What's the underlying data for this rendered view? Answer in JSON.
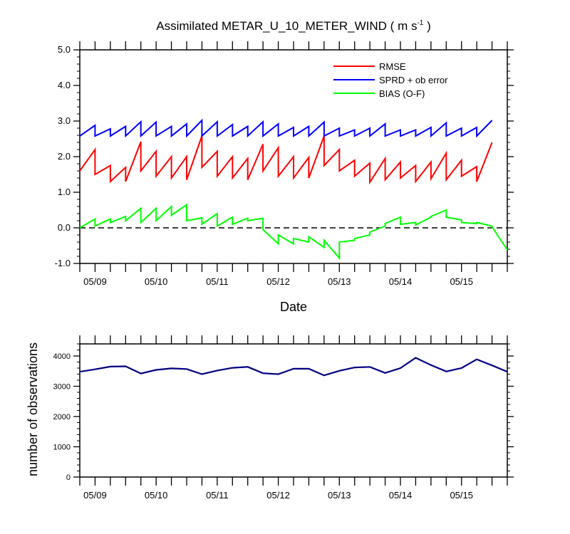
{
  "chart_data": [
    {
      "type": "line",
      "title": "Assimilated METAR_U_10_METER_WIND ( m s",
      "title_superscript": "-1",
      "title_close": " )",
      "xlabel": "Date",
      "ylabel": "",
      "ylim": [
        -1.0,
        5.0
      ],
      "yticks": [
        "-1.0",
        "0.0",
        "1.0",
        "2.0",
        "3.0",
        "4.0",
        "5.0"
      ],
      "yticks_values": [
        -1,
        0,
        1,
        2,
        3,
        4,
        5
      ],
      "xlim": [
        0,
        28
      ],
      "x_tick_labels": [
        "05/09",
        "05/10",
        "05/11",
        "05/12",
        "05/13",
        "05/14",
        "05/15"
      ],
      "x_tick_positions": [
        1,
        5,
        9,
        13,
        17,
        21,
        25
      ],
      "legend_position": "top-right",
      "zero_line": "dashed",
      "series": [
        {
          "name": "RMSE",
          "color": "#ff0000",
          "points": [
            [
              0,
              1.6
            ],
            [
              1,
              2.2
            ],
            [
              1,
              1.5
            ],
            [
              2,
              1.75
            ],
            [
              2,
              1.3
            ],
            [
              3,
              1.7
            ],
            [
              3,
              1.3
            ],
            [
              4,
              2.42
            ],
            [
              4,
              1.6
            ],
            [
              5,
              2.15
            ],
            [
              5,
              1.45
            ],
            [
              6,
              2.0
            ],
            [
              6,
              1.4
            ],
            [
              7,
              2.0
            ],
            [
              7,
              1.35
            ],
            [
              8,
              2.58
            ],
            [
              8,
              1.7
            ],
            [
              9,
              2.15
            ],
            [
              9,
              1.45
            ],
            [
              10,
              2.0
            ],
            [
              10,
              1.4
            ],
            [
              11,
              1.95
            ],
            [
              11,
              1.35
            ],
            [
              12,
              2.35
            ],
            [
              12,
              1.6
            ],
            [
              13,
              2.25
            ],
            [
              13,
              1.45
            ],
            [
              14,
              2.0
            ],
            [
              14,
              1.4
            ],
            [
              15,
              1.98
            ],
            [
              15,
              1.4
            ],
            [
              16,
              2.58
            ],
            [
              16,
              1.75
            ],
            [
              17,
              2.2
            ],
            [
              17,
              1.6
            ],
            [
              18,
              1.9
            ],
            [
              18,
              1.45
            ],
            [
              19,
              1.82
            ],
            [
              19,
              1.28
            ],
            [
              20,
              1.95
            ],
            [
              20,
              1.35
            ],
            [
              21,
              1.85
            ],
            [
              21,
              1.4
            ],
            [
              22,
              1.75
            ],
            [
              22,
              1.3
            ],
            [
              23,
              1.85
            ],
            [
              23,
              1.38
            ],
            [
              24,
              2.1
            ],
            [
              24,
              1.35
            ],
            [
              25,
              1.9
            ],
            [
              25,
              1.45
            ],
            [
              26,
              1.72
            ],
            [
              26,
              1.3
            ],
            [
              27,
              2.4
            ]
          ]
        },
        {
          "name": "SPRD + ob error",
          "color": "#0000ff",
          "points": [
            [
              0,
              2.58
            ],
            [
              1,
              2.88
            ],
            [
              1,
              2.58
            ],
            [
              2,
              2.78
            ],
            [
              2,
              2.58
            ],
            [
              3,
              2.85
            ],
            [
              3,
              2.58
            ],
            [
              4,
              2.98
            ],
            [
              4,
              2.58
            ],
            [
              5,
              2.97
            ],
            [
              5,
              2.58
            ],
            [
              6,
              2.85
            ],
            [
              6,
              2.58
            ],
            [
              7,
              2.92
            ],
            [
              7,
              2.58
            ],
            [
              8,
              3.02
            ],
            [
              8,
              2.58
            ],
            [
              9,
              2.98
            ],
            [
              9,
              2.58
            ],
            [
              10,
              2.9
            ],
            [
              10,
              2.58
            ],
            [
              11,
              2.85
            ],
            [
              11,
              2.58
            ],
            [
              12,
              2.98
            ],
            [
              12,
              2.58
            ],
            [
              13,
              2.92
            ],
            [
              13,
              2.58
            ],
            [
              14,
              2.82
            ],
            [
              14,
              2.58
            ],
            [
              15,
              2.85
            ],
            [
              15,
              2.58
            ],
            [
              16,
              2.97
            ],
            [
              16,
              2.58
            ],
            [
              17,
              2.8
            ],
            [
              17,
              2.58
            ],
            [
              18,
              2.75
            ],
            [
              18,
              2.58
            ],
            [
              19,
              2.8
            ],
            [
              19,
              2.58
            ],
            [
              20,
              2.92
            ],
            [
              20,
              2.58
            ],
            [
              21,
              2.75
            ],
            [
              21,
              2.58
            ],
            [
              22,
              2.75
            ],
            [
              22,
              2.58
            ],
            [
              23,
              2.82
            ],
            [
              23,
              2.58
            ],
            [
              24,
              2.95
            ],
            [
              24,
              2.58
            ],
            [
              25,
              2.8
            ],
            [
              25,
              2.58
            ],
            [
              26,
              2.82
            ],
            [
              26,
              2.58
            ],
            [
              27,
              3.02
            ]
          ]
        },
        {
          "name": "BIAS (O-F)",
          "color": "#00ff00",
          "points": [
            [
              0,
              0.0
            ],
            [
              1,
              0.25
            ],
            [
              1,
              0.05
            ],
            [
              2,
              0.25
            ],
            [
              2,
              0.15
            ],
            [
              3,
              0.32
            ],
            [
              3,
              0.2
            ],
            [
              4,
              0.55
            ],
            [
              4,
              0.15
            ],
            [
              5,
              0.55
            ],
            [
              5,
              0.2
            ],
            [
              6,
              0.6
            ],
            [
              6,
              0.35
            ],
            [
              7,
              0.65
            ],
            [
              7,
              0.2
            ],
            [
              8,
              0.28
            ],
            [
              8,
              0.1
            ],
            [
              9,
              0.4
            ],
            [
              9,
              0.05
            ],
            [
              10,
              0.3
            ],
            [
              10,
              0.1
            ],
            [
              11,
              0.27
            ],
            [
              11,
              0.2
            ],
            [
              12,
              0.27
            ],
            [
              12,
              -0.05
            ],
            [
              13,
              -0.45
            ],
            [
              13,
              -0.2
            ],
            [
              14,
              -0.45
            ],
            [
              14,
              -0.3
            ],
            [
              15,
              -0.4
            ],
            [
              15,
              -0.25
            ],
            [
              16,
              -0.55
            ],
            [
              16,
              -0.35
            ],
            [
              17,
              -0.85
            ],
            [
              17,
              -0.4
            ],
            [
              18,
              -0.35
            ],
            [
              18,
              -0.3
            ],
            [
              19,
              -0.2
            ],
            [
              19,
              -0.12
            ],
            [
              20,
              0.05
            ],
            [
              20,
              0.12
            ],
            [
              21,
              0.3
            ],
            [
              21,
              0.1
            ],
            [
              22,
              0.15
            ],
            [
              22,
              0.08
            ],
            [
              23,
              0.3
            ],
            [
              23,
              0.32
            ],
            [
              24,
              0.5
            ],
            [
              24,
              0.3
            ],
            [
              25,
              0.22
            ],
            [
              25,
              0.15
            ],
            [
              26,
              0.12
            ],
            [
              26,
              0.15
            ],
            [
              27,
              0.05
            ],
            [
              27,
              0.03
            ],
            [
              28,
              -0.62
            ]
          ]
        }
      ]
    },
    {
      "type": "line",
      "ylabel": "number of observations",
      "ylim": [
        0,
        4400
      ],
      "yticks": [
        "0",
        "1000",
        "2000",
        "3000",
        "4000"
      ],
      "yticks_values": [
        0,
        1000,
        2000,
        3000,
        4000
      ],
      "xlim": [
        0,
        28
      ],
      "x_tick_labels": [
        "05/09",
        "05/10",
        "05/11",
        "05/12",
        "05/13",
        "05/14",
        "05/15"
      ],
      "x_tick_positions": [
        1,
        5,
        9,
        13,
        17,
        21,
        25
      ],
      "series": [
        {
          "color": "#000080",
          "x": [
            0,
            1,
            2,
            3,
            4,
            5,
            6,
            7,
            8,
            9,
            10,
            11,
            12,
            13,
            14,
            15,
            16,
            17,
            18,
            19,
            20,
            21,
            22,
            23,
            24,
            25,
            26,
            27,
            28
          ],
          "values": [
            3480,
            3560,
            3650,
            3660,
            3420,
            3540,
            3590,
            3570,
            3400,
            3520,
            3610,
            3640,
            3430,
            3400,
            3580,
            3580,
            3360,
            3510,
            3620,
            3640,
            3440,
            3600,
            3940,
            3700,
            3490,
            3600,
            3890,
            3690,
            3480
          ]
        }
      ]
    }
  ]
}
